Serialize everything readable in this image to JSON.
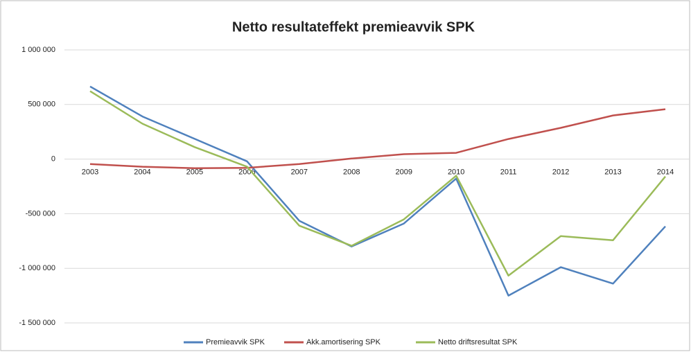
{
  "chart_data": {
    "type": "line",
    "title": "Netto resultateffekt premieavvik SPK",
    "categories": [
      "2003",
      "2004",
      "2005",
      "2006",
      "2007",
      "2008",
      "2009",
      "2010",
      "2011",
      "2012",
      "2013",
      "2014"
    ],
    "series": [
      {
        "name": "Premieavvik SPK",
        "color": "#4f81bd",
        "values": [
          665000,
          390000,
          185000,
          -20000,
          -565000,
          -800000,
          -590000,
          -178000,
          -1250000,
          -990000,
          -1140000,
          -616000
        ]
      },
      {
        "name": "Akk.amortisering SPK",
        "color": "#c0504d",
        "values": [
          -45000,
          -70000,
          -83000,
          -80000,
          -45000,
          5000,
          45000,
          57000,
          184000,
          286000,
          400000,
          457000
        ]
      },
      {
        "name": "Netto driftsresultat SPK",
        "color": "#9bbb59",
        "values": [
          622000,
          324000,
          110000,
          -70000,
          -610000,
          -794000,
          -552000,
          -152000,
          -1067000,
          -705000,
          -743000,
          -159000
        ]
      }
    ],
    "ylim": [
      -1500000,
      1000000
    ],
    "yticks": [
      {
        "value": -1500000,
        "label": "-1 500 000"
      },
      {
        "value": -1000000,
        "label": "-1 000 000"
      },
      {
        "value": -500000,
        "label": "-500 000"
      },
      0,
      {
        "value": 500000,
        "label": "500 000"
      },
      {
        "value": 1000000,
        "label": "1 000 000"
      }
    ],
    "grid": true,
    "legend": "bottom"
  }
}
